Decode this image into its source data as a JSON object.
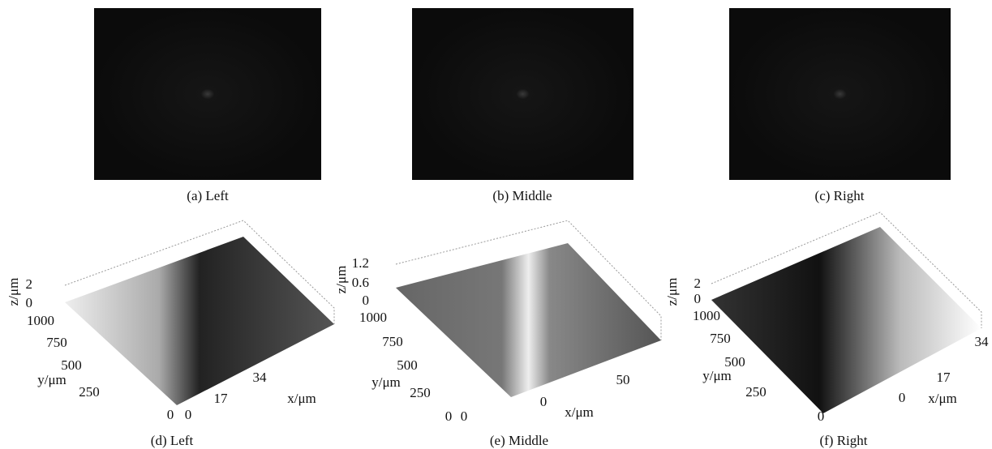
{
  "images": [
    {
      "caption": "(a) Left"
    },
    {
      "caption": "(b) Middle"
    },
    {
      "caption": "(c) Right"
    }
  ],
  "plots": [
    {
      "caption": "(d) Left",
      "z_label": "z/μm",
      "y_label": "y/μm",
      "x_label": "x/μm",
      "z_ticks": [
        "2",
        "0"
      ],
      "y_ticks": [
        "1000",
        "750",
        "500",
        "250",
        "0"
      ],
      "x_ticks": [
        "0",
        "17",
        "34"
      ]
    },
    {
      "caption": "(e) Middle",
      "z_label": "z/μm",
      "y_label": "y/μm",
      "x_label": "x/μm",
      "z_ticks": [
        "1.2",
        "0.6",
        "0"
      ],
      "y_ticks": [
        "1000",
        "750",
        "500",
        "250",
        "0"
      ],
      "x_ticks": [
        "0",
        "0",
        "50"
      ]
    },
    {
      "caption": "(f) Right",
      "z_label": "z/μm",
      "y_label": "y/μm",
      "x_label": "x/μm",
      "z_ticks": [
        "2",
        "0"
      ],
      "y_ticks": [
        "1000",
        "750",
        "500",
        "250",
        "0"
      ],
      "x_ticks": [
        "0",
        "17",
        "34"
      ]
    }
  ]
}
